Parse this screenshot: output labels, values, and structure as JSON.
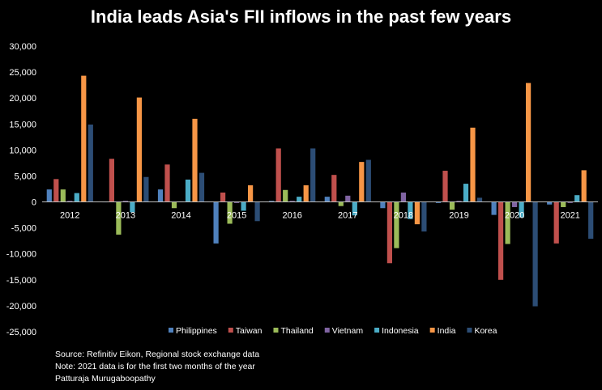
{
  "chart_data": {
    "type": "bar",
    "title": "India leads Asia's FII inflows in the past few years",
    "categories": [
      "2012",
      "2013",
      "2014",
      "2015",
      "2016",
      "2017",
      "2018",
      "2019",
      "2020",
      "2021"
    ],
    "series": [
      {
        "name": "Philippines",
        "color": "#4f81bd",
        "values": [
          2400,
          0,
          2400,
          -8000,
          200,
          1000,
          -1200,
          -200,
          -2500,
          -500
        ]
      },
      {
        "name": "Taiwan",
        "color": "#c0504d",
        "values": [
          4400,
          8300,
          7200,
          1800,
          10300,
          5200,
          -11800,
          6000,
          -15000,
          -8000
        ]
      },
      {
        "name": "Thailand",
        "color": "#9bbb59",
        "values": [
          2400,
          -6300,
          -1200,
          -4200,
          2300,
          -800,
          -8900,
          -1500,
          -8100,
          -1000
        ]
      },
      {
        "name": "Vietnam",
        "color": "#8064a2",
        "values": [
          200,
          200,
          100,
          -200,
          200,
          1200,
          1800,
          200,
          -1000,
          -200
        ]
      },
      {
        "name": "Indonesia",
        "color": "#4bacc6",
        "values": [
          1700,
          -2000,
          4300,
          -1700,
          1000,
          -2600,
          -3300,
          3500,
          -3000,
          1300
        ]
      },
      {
        "name": "India",
        "color": "#f79646",
        "values": [
          24300,
          20100,
          16000,
          3200,
          3200,
          7700,
          -4300,
          14300,
          22900,
          6100
        ]
      },
      {
        "name": "Korea",
        "color": "#2c4d75",
        "values": [
          14900,
          4800,
          5600,
          -3700,
          10300,
          8100,
          -5700,
          800,
          -20100,
          -7100
        ]
      }
    ],
    "ylim": [
      -25000,
      30000
    ],
    "yticks": [
      "30,000",
      "25,000",
      "20,000",
      "15,000",
      "10,000",
      "5,000",
      "0",
      "-5,000",
      "-10,000",
      "-15,000",
      "-20,000",
      "-25,000"
    ],
    "legend_position": "bottom",
    "grid": false
  },
  "notes": {
    "source": "Source: Refinitiv Eikon, Regional stock exchange data",
    "note": "Note: 2021 data is for the first two months of the year",
    "author": "Patturaja Murugaboopathy"
  }
}
